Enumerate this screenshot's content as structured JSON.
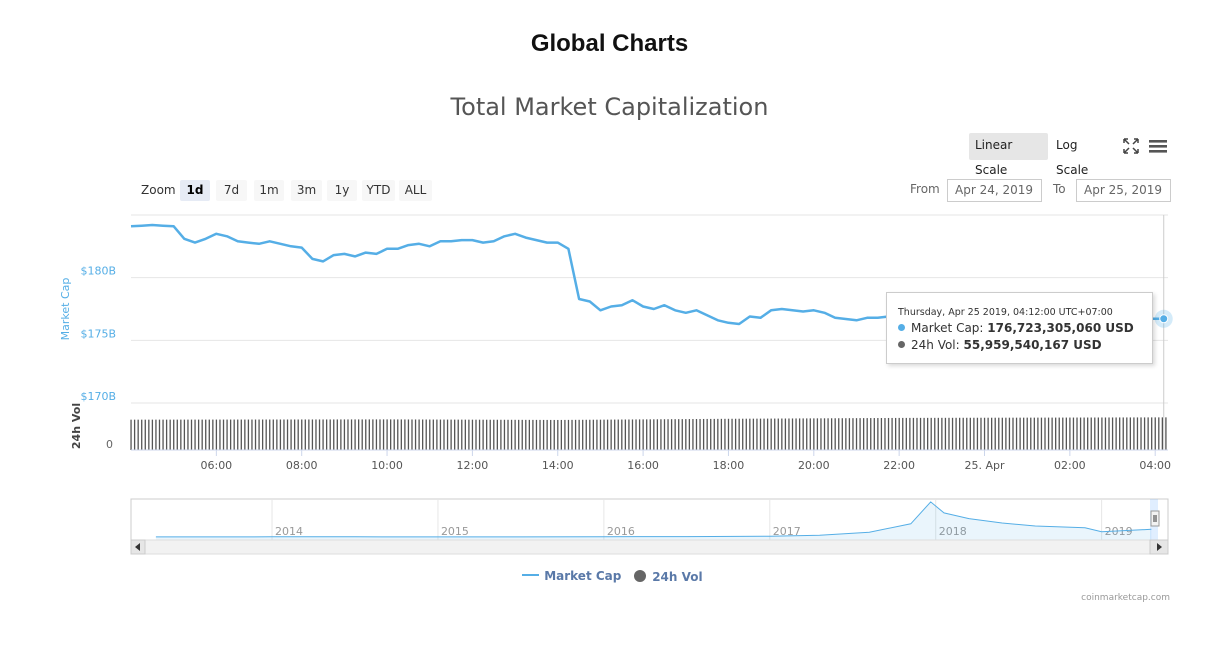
{
  "page": {
    "title": "Global Charts"
  },
  "toolbar": {
    "linear_scale": "Linear Scale",
    "log_scale": "Log Scale",
    "fullscreen_icon": "expand-icon",
    "menu_icon": "hamburger-menu-icon"
  },
  "range_selector": {
    "zoom_label": "Zoom",
    "buttons": [
      "1d",
      "7d",
      "1m",
      "3m",
      "1y",
      "YTD",
      "ALL"
    ],
    "active": "1d",
    "from_label": "From",
    "from_value": "Apr 24, 2019",
    "to_label": "To",
    "to_value": "Apr 25, 2019"
  },
  "tooltip": {
    "header": "Thursday, Apr 25 2019, 04:12:00 UTC+07:00",
    "rows": [
      {
        "label": "Market Cap:",
        "value": "176,723,305,060 USD",
        "color": "#55aee6"
      },
      {
        "label": "24h Vol:",
        "value": "55,959,540,167 USD",
        "color": "#666666"
      }
    ]
  },
  "credits": "coinmarketcap.com",
  "chart_data": {
    "type": "line",
    "title": "Total Market Capitalization",
    "ylabel": "Market Cap",
    "ylabel2": "24h Vol",
    "y_ticks": [
      "$180B",
      "$175B",
      "$170B"
    ],
    "y_tick_values": [
      180,
      175,
      170
    ],
    "ylim": [
      170,
      185
    ],
    "vol_tick": "0",
    "x_ticks": [
      "06:00",
      "08:00",
      "10:00",
      "12:00",
      "14:00",
      "16:00",
      "18:00",
      "20:00",
      "22:00",
      "25. Apr",
      "02:00",
      "04:00"
    ],
    "x_tick_hours": [
      6,
      8,
      10,
      12,
      14,
      16,
      18,
      20,
      22,
      24,
      26,
      28
    ],
    "xlim_hours": [
      4.0,
      28.3
    ],
    "series": [
      {
        "name": "Market Cap",
        "color": "#55aee6",
        "unit": "billion USD",
        "x_hours": [
          4.0,
          4.25,
          4.5,
          4.75,
          5.0,
          5.25,
          5.5,
          5.75,
          6.0,
          6.25,
          6.5,
          6.75,
          7.0,
          7.25,
          7.5,
          7.75,
          8.0,
          8.25,
          8.5,
          8.75,
          9.0,
          9.25,
          9.5,
          9.75,
          10.0,
          10.25,
          10.5,
          10.75,
          11.0,
          11.25,
          11.5,
          11.75,
          12.0,
          12.25,
          12.5,
          12.75,
          13.0,
          13.25,
          13.5,
          13.75,
          14.0,
          14.25,
          14.5,
          14.75,
          15.0,
          15.25,
          15.5,
          15.75,
          16.0,
          16.25,
          16.5,
          16.75,
          17.0,
          17.25,
          17.5,
          17.75,
          18.0,
          18.25,
          18.5,
          18.75,
          19.0,
          19.25,
          19.5,
          19.75,
          20.0,
          20.25,
          20.5,
          20.75,
          21.0,
          21.25,
          21.5,
          21.75,
          22.0,
          28.0,
          28.2
        ],
        "values": [
          184.1,
          184.15,
          184.2,
          184.15,
          184.1,
          183.1,
          182.8,
          183.1,
          183.5,
          183.3,
          182.9,
          182.8,
          182.7,
          182.9,
          182.7,
          182.5,
          182.4,
          181.5,
          181.3,
          181.8,
          181.9,
          181.7,
          182.0,
          181.9,
          182.3,
          182.3,
          182.6,
          182.7,
          182.5,
          182.9,
          182.9,
          183.0,
          183.0,
          182.8,
          182.9,
          183.3,
          183.5,
          183.2,
          183.0,
          182.8,
          182.8,
          182.3,
          178.3,
          178.1,
          177.4,
          177.7,
          177.8,
          178.2,
          177.7,
          177.5,
          177.8,
          177.4,
          177.2,
          177.4,
          177.0,
          176.6,
          176.4,
          176.3,
          176.9,
          176.8,
          177.4,
          177.5,
          177.4,
          177.3,
          177.4,
          177.2,
          176.8,
          176.7,
          176.6,
          176.8,
          176.8,
          176.9,
          177.0,
          176.72,
          176.72
        ]
      },
      {
        "name": "24h Vol",
        "color": "#666666",
        "unit": "billion USD",
        "x_hours": [
          4.0,
          10.0,
          14.0,
          18.0,
          22.0,
          28.2
        ],
        "values": [
          52.0,
          52.5,
          51.5,
          53.5,
          55.0,
          55.96
        ]
      }
    ],
    "navigator": {
      "x_ticks": [
        "2014",
        "2015",
        "2016",
        "2017",
        "2018",
        "2019"
      ],
      "years": [
        2013.3,
        2013.5,
        2014.0,
        2014.5,
        2015.0,
        2015.5,
        2016.0,
        2016.5,
        2017.0,
        2017.3,
        2017.6,
        2017.85,
        2017.97,
        2018.05,
        2018.2,
        2018.4,
        2018.6,
        2018.9,
        2019.0,
        2019.3
      ],
      "values": [
        1.5,
        1.8,
        5,
        4,
        3,
        3,
        7,
        10,
        18,
        40,
        110,
        300,
        800,
        550,
        420,
        320,
        250,
        210,
        120,
        176
      ]
    },
    "grid": true,
    "legend_position": "bottom-center"
  }
}
